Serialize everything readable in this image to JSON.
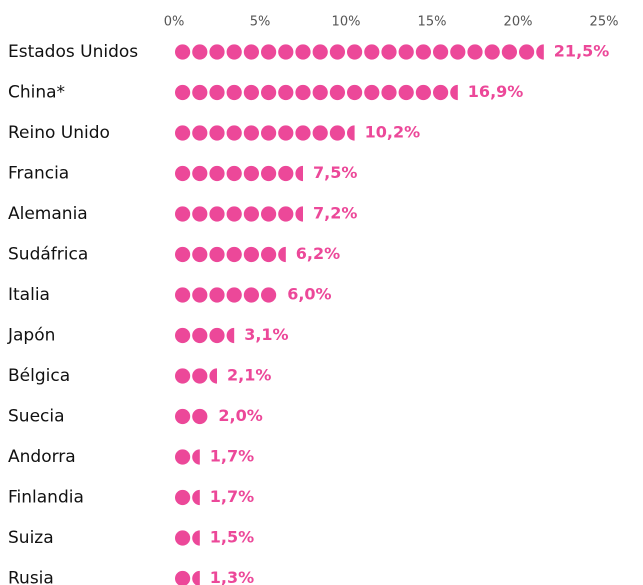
{
  "chart_data": {
    "type": "dot",
    "categories": [
      "Estados Unidos",
      "China*",
      "Reino Unido",
      "Francia",
      "Alemania",
      "Sudáfrica",
      "Italia",
      "Japón",
      "Bélgica",
      "Suecia",
      "Andorra",
      "Finlandia",
      "Suiza",
      "Rusia"
    ],
    "values": [
      21.5,
      16.9,
      10.2,
      7.5,
      7.2,
      6.2,
      6.0,
      3.1,
      2.1,
      2.0,
      1.7,
      1.7,
      1.5,
      1.3
    ],
    "value_labels": [
      "21,5%",
      "16,9%",
      "10,2%",
      "7,5%",
      "7,2%",
      "6,2%",
      "6,0%",
      "3,1%",
      "2,1%",
      "2,0%",
      "1,7%",
      "1,7%",
      "1,5%",
      "1,3%"
    ],
    "color": "#ec4899",
    "xlim": [
      0,
      25
    ],
    "xticks": [
      {
        "value": 0,
        "label": "0%"
      },
      {
        "value": 5,
        "label": "5%"
      },
      {
        "value": 10,
        "label": "10%"
      },
      {
        "value": 15,
        "label": "15%"
      },
      {
        "value": 20,
        "label": "20%"
      },
      {
        "value": 25,
        "label": "25%"
      }
    ]
  }
}
